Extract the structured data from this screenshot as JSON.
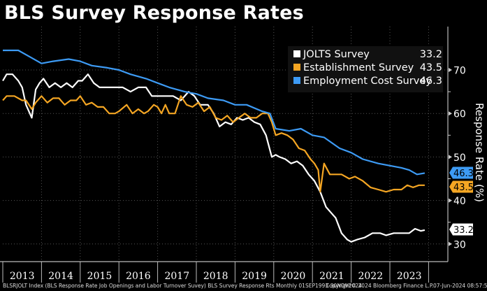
{
  "chart_data": {
    "type": "line",
    "title": "BLS Survey Response Rates",
    "xlabel": "",
    "ylabel": "Response Rate (%)",
    "ylim": [
      27,
      75
    ],
    "y_ticks": [
      30,
      40,
      50,
      60,
      70
    ],
    "x_ticks": [
      "2013",
      "2014",
      "2015",
      "2016",
      "2017",
      "2018",
      "2019",
      "2020",
      "2021",
      "2022",
      "2023"
    ],
    "x_range": [
      2013.0,
      2024.3
    ],
    "grid": true,
    "legend_position": "top-right",
    "series": [
      {
        "name": "JOLTS Survey",
        "last_value": "33.2",
        "color": "#ffffff",
        "x": [
          2013.0,
          2013.1,
          2013.25,
          2013.4,
          2013.5,
          2013.6,
          2013.75,
          2013.85,
          2013.95,
          2014.05,
          2014.2,
          2014.35,
          2014.5,
          2014.65,
          2014.8,
          2014.95,
          2015.05,
          2015.2,
          2015.35,
          2015.5,
          2015.65,
          2015.75,
          2015.95,
          2016.1,
          2016.3,
          2016.5,
          2016.7,
          2016.85,
          2017.0,
          2017.2,
          2017.4,
          2017.6,
          2017.8,
          2017.95,
          2018.1,
          2018.3,
          2018.45,
          2018.6,
          2018.75,
          2018.9,
          2019.05,
          2019.2,
          2019.35,
          2019.5,
          2019.65,
          2019.8,
          2019.95,
          2020.05,
          2020.15,
          2020.3,
          2020.45,
          2020.6,
          2020.75,
          2020.9,
          2021.05,
          2021.2,
          2021.35,
          2021.5,
          2021.6,
          2021.75,
          2021.9,
          2022.0,
          2022.15,
          2022.35,
          2022.55,
          2022.75,
          2022.9,
          2023.1,
          2023.3,
          2023.5,
          2023.65,
          2023.8,
          2023.9
        ],
        "values": [
          67.5,
          69.0,
          69.0,
          67.5,
          66.0,
          62.0,
          59.0,
          65.5,
          67.0,
          68.0,
          66.0,
          67.0,
          66.0,
          67.0,
          66.0,
          67.5,
          67.5,
          69.0,
          67.0,
          66.0,
          66.0,
          66.0,
          66.0,
          66.0,
          65.0,
          66.0,
          66.0,
          64.0,
          64.0,
          64.0,
          64.0,
          63.0,
          65.0,
          64.0,
          62.0,
          62.0,
          60.0,
          57.0,
          58.0,
          57.5,
          59.0,
          58.5,
          59.0,
          58.0,
          57.5,
          55.0,
          50.0,
          50.5,
          50.0,
          49.5,
          48.5,
          49.0,
          48.0,
          46.0,
          44.5,
          42.0,
          38.5,
          37.0,
          36.0,
          32.5,
          31.0,
          30.5,
          31.0,
          31.5,
          32.5,
          32.5,
          32.0,
          32.5,
          32.5,
          32.5,
          33.5,
          33.0,
          33.2
        ]
      },
      {
        "name": "Establishment Survey",
        "last_value": "43.5",
        "color": "#f5a623",
        "x": [
          2013.0,
          2013.1,
          2013.3,
          2013.5,
          2013.6,
          2013.75,
          2013.85,
          2014.0,
          2014.15,
          2014.3,
          2014.45,
          2014.6,
          2014.75,
          2014.9,
          2015.0,
          2015.15,
          2015.3,
          2015.45,
          2015.6,
          2015.75,
          2015.9,
          2016.0,
          2016.2,
          2016.35,
          2016.5,
          2016.65,
          2016.75,
          2016.9,
          2017.0,
          2017.1,
          2017.2,
          2017.3,
          2017.45,
          2017.6,
          2017.75,
          2017.9,
          2018.05,
          2018.2,
          2018.35,
          2018.5,
          2018.65,
          2018.8,
          2018.95,
          2019.1,
          2019.25,
          2019.4,
          2019.55,
          2019.7,
          2019.85,
          2019.95,
          2020.05,
          2020.2,
          2020.35,
          2020.5,
          2020.65,
          2020.8,
          2020.95,
          2021.05,
          2021.15,
          2021.2,
          2021.3,
          2021.45,
          2021.6,
          2021.75,
          2021.95,
          2022.1,
          2022.3,
          2022.5,
          2022.7,
          2022.9,
          2023.1,
          2023.3,
          2023.45,
          2023.6,
          2023.75,
          2023.9
        ],
        "values": [
          63.0,
          64.0,
          64.0,
          63.0,
          63.0,
          61.0,
          62.5,
          64.0,
          62.5,
          63.5,
          63.5,
          62.0,
          63.0,
          63.0,
          64.0,
          62.0,
          62.5,
          61.5,
          61.5,
          60.0,
          60.0,
          60.5,
          62.0,
          60.0,
          61.0,
          60.0,
          60.5,
          62.0,
          61.5,
          60.0,
          62.0,
          60.0,
          60.0,
          64.0,
          62.0,
          61.5,
          62.5,
          60.5,
          61.5,
          59.0,
          58.5,
          59.5,
          58.0,
          59.0,
          60.0,
          59.0,
          59.0,
          60.0,
          60.0,
          58.0,
          55.0,
          55.5,
          55.0,
          54.0,
          52.0,
          51.5,
          49.5,
          48.5,
          47.0,
          42.0,
          48.5,
          46.0,
          46.0,
          46.0,
          45.0,
          45.5,
          44.5,
          43.0,
          42.5,
          42.0,
          42.5,
          42.5,
          43.5,
          43.0,
          43.5,
          43.5
        ]
      },
      {
        "name": "Employment Cost Survey",
        "last_value": "46.3",
        "color": "#3d9bf5",
        "x": [
          2013.0,
          2013.4,
          2013.7,
          2014.0,
          2014.3,
          2014.7,
          2015.0,
          2015.3,
          2015.7,
          2016.0,
          2016.3,
          2016.7,
          2017.0,
          2017.3,
          2017.7,
          2018.0,
          2018.3,
          2018.7,
          2019.0,
          2019.3,
          2019.7,
          2019.9,
          2020.05,
          2020.4,
          2020.7,
          2021.0,
          2021.3,
          2021.7,
          2022.0,
          2022.3,
          2022.7,
          2023.0,
          2023.3,
          2023.5,
          2023.7,
          2023.9
        ],
        "values": [
          74.5,
          74.5,
          73.0,
          71.5,
          72.0,
          72.5,
          72.0,
          71.0,
          70.5,
          70.0,
          69.0,
          68.0,
          67.0,
          66.0,
          65.0,
          64.5,
          63.5,
          63.0,
          62.0,
          62.0,
          60.5,
          60.0,
          56.5,
          56.0,
          56.5,
          55.0,
          54.5,
          52.0,
          51.0,
          49.5,
          48.5,
          48.0,
          47.5,
          47.0,
          46.0,
          46.3
        ]
      }
    ],
    "end_labels": [
      "46.3",
      "43.5",
      "33.2"
    ]
  },
  "legend": {
    "items": [
      {
        "label": "JOLTS Survey",
        "value": "33.2"
      },
      {
        "label": "Establishment Survey",
        "value": "43.5"
      },
      {
        "label": "Employment Cost Survey",
        "value": "46.3"
      }
    ]
  },
  "footer": {
    "source": "BLSRJOLT Index (BLS Response Rate Job Openings and Labor Turnover Suvey) BLS Survey Response Rts  Monthly 01SEP1993-30NOV2024",
    "copyright": "Copyright© 2024 Bloomberg Finance L.P.",
    "timestamp": "07-Jun-2024 08:57:55"
  }
}
